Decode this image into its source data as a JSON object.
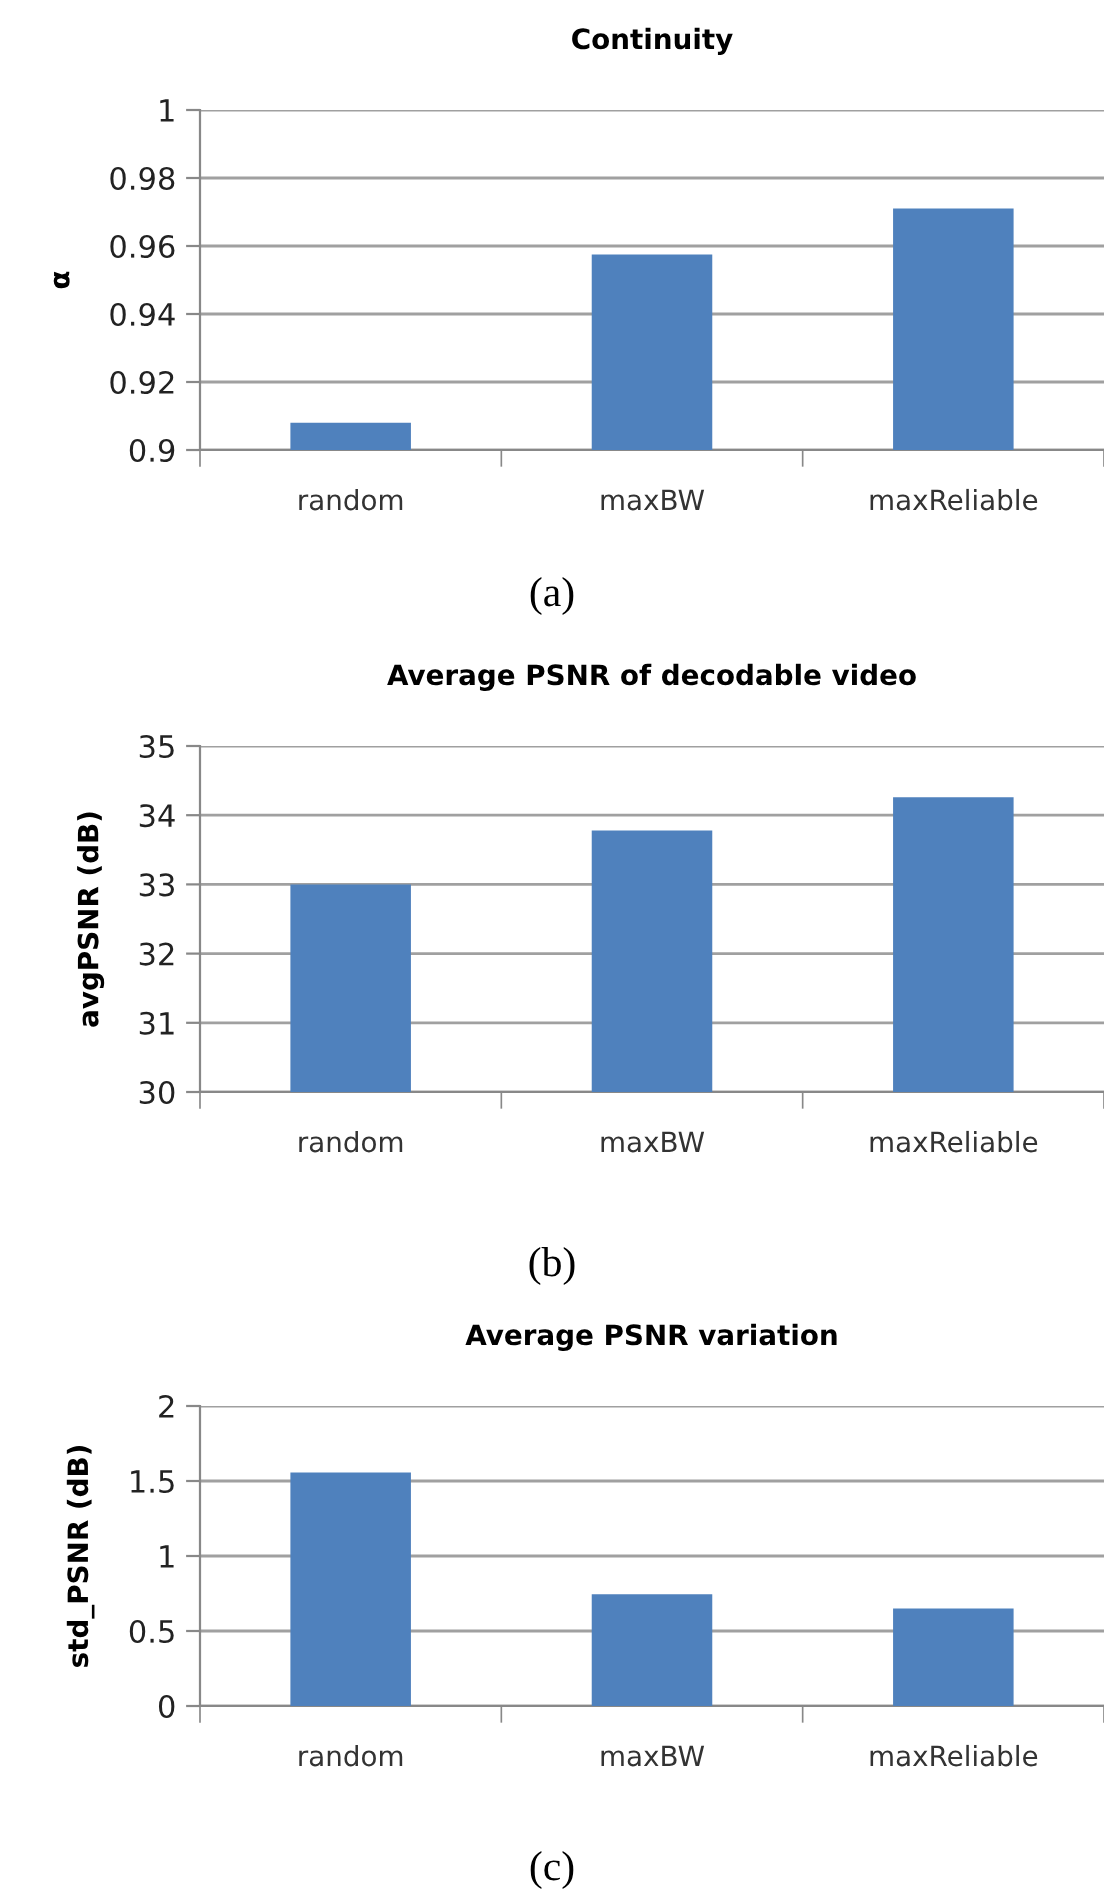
{
  "chart_data": [
    {
      "type": "bar",
      "title": "Continuity",
      "ylabel": "α",
      "categories": [
        "random",
        "maxBW",
        "maxReliable"
      ],
      "values": [
        0.908,
        0.9575,
        0.971
      ],
      "color": "#4f81bd",
      "ylim": [
        0.9,
        1
      ],
      "yticks": [
        {
          "value": 0.9,
          "label": "0.9"
        },
        0.92,
        0.94,
        0.96,
        0.98,
        {
          "value": 1,
          "label": "1"
        }
      ],
      "grid": "y",
      "annotations": [
        "(a)"
      ]
    },
    {
      "type": "bar",
      "title": "Average PSNR of decodable video",
      "ylabel": "avgPSNR (dB)",
      "categories": [
        "random",
        "maxBW",
        "maxReliable"
      ],
      "values": [
        33.0,
        33.78,
        34.26
      ],
      "color": "#4f81bd",
      "ylim": [
        30,
        35
      ],
      "yticks": [
        30,
        31,
        32,
        33,
        34,
        35
      ],
      "grid": "y",
      "annotations": [
        "(b)"
      ]
    },
    {
      "type": "bar",
      "title": "Average PSNR variation",
      "ylabel": "std_PSNR (dB)",
      "categories": [
        "random",
        "maxBW",
        "maxReliable"
      ],
      "values": [
        1.556,
        0.745,
        0.65
      ],
      "color": "#4f81bd",
      "ylim": [
        0,
        2
      ],
      "yticks": [
        0,
        0.5,
        1,
        1.5,
        2
      ],
      "grid": "y",
      "annotations": [
        "(c)"
      ]
    }
  ]
}
